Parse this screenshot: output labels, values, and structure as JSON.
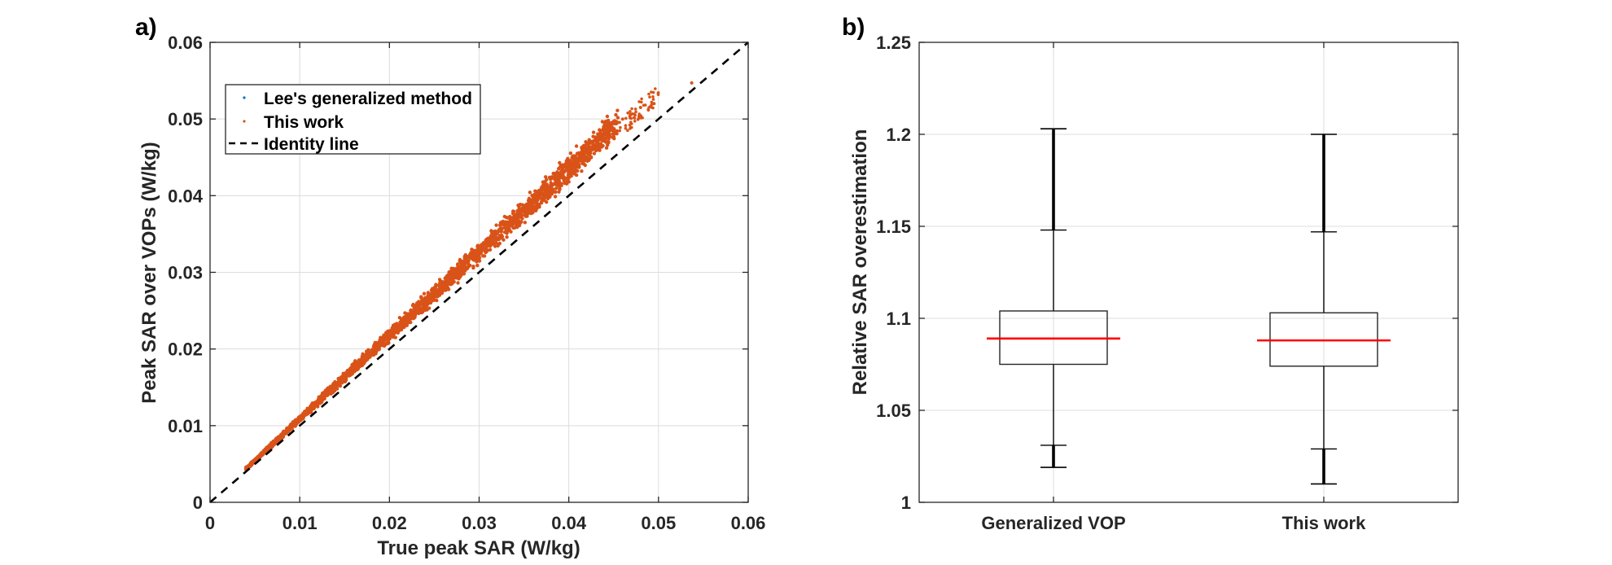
{
  "chart_data": [
    {
      "type": "scatter",
      "panel_label": "a)",
      "title": "",
      "xlabel": "True peak SAR (W/kg)",
      "ylabel": "Peak SAR over VOPs (W/kg)",
      "xlim": [
        0,
        0.06
      ],
      "ylim": [
        0,
        0.06
      ],
      "xticks": [
        0,
        0.01,
        0.02,
        0.03,
        0.04,
        0.05,
        0.06
      ],
      "yticks": [
        0,
        0.01,
        0.02,
        0.03,
        0.04,
        0.05,
        0.06
      ],
      "xtick_labels": [
        "0",
        "0.01",
        "0.02",
        "0.03",
        "0.04",
        "0.05",
        "0.06"
      ],
      "ytick_labels": [
        "0",
        "0.01",
        "0.02",
        "0.03",
        "0.04",
        "0.05",
        "0.06"
      ],
      "grid": true,
      "legend_position": "top-left",
      "legend": [
        {
          "label": "Lee's generalized method",
          "marker": "dot",
          "color": "#0072BD"
        },
        {
          "label": "This work",
          "marker": "dot",
          "color": "#D95319"
        },
        {
          "label": "Identity line",
          "marker": "dashed-line",
          "color": "#000000"
        }
      ],
      "series": [
        {
          "name": "Lee's generalized method",
          "color": "#0072BD",
          "note": "hidden beneath 'This work' points",
          "ratio_range_y_over_x": [
            1.02,
            1.2
          ],
          "x_range": [
            0.004,
            0.0537
          ],
          "points": []
        },
        {
          "name": "This work",
          "color": "#D95319",
          "ratio_range_y_over_x": [
            1.01,
            1.2
          ],
          "ratio_median": 1.088,
          "x_range": [
            0.004,
            0.0537
          ],
          "points": [
            [
              0.004,
              0.0046
            ],
            [
              0.006,
              0.0067
            ],
            [
              0.008,
              0.0089
            ],
            [
              0.01,
              0.011
            ],
            [
              0.012,
              0.0132
            ],
            [
              0.015,
              0.0165
            ],
            [
              0.018,
              0.0198
            ],
            [
              0.02,
              0.022
            ],
            [
              0.022,
              0.0242
            ],
            [
              0.025,
              0.0275
            ],
            [
              0.028,
              0.0308
            ],
            [
              0.03,
              0.033
            ],
            [
              0.033,
              0.0362
            ],
            [
              0.035,
              0.0385
            ],
            [
              0.038,
              0.0417
            ],
            [
              0.04,
              0.044
            ],
            [
              0.042,
              0.046
            ],
            [
              0.044,
              0.048
            ],
            [
              0.046,
              0.05
            ],
            [
              0.048,
              0.0515
            ],
            [
              0.0495,
              0.052
            ],
            [
              0.0537,
              0.0547
            ]
          ]
        },
        {
          "name": "Identity line",
          "color": "#000000",
          "style": "dashed",
          "x": [
            0,
            0.06
          ],
          "y": [
            0,
            0.06
          ]
        }
      ]
    },
    {
      "type": "box",
      "panel_label": "b)",
      "title": "",
      "xlabel": "",
      "ylabel": "Relative SAR overestimation",
      "ylim": [
        1,
        1.25
      ],
      "yticks": [
        1,
        1.05,
        1.1,
        1.15,
        1.2,
        1.25
      ],
      "ytick_labels": [
        "1",
        "1.05",
        "1.1",
        "1.15",
        "1.2",
        "1.25"
      ],
      "categories": [
        "Generalized VOP",
        "This work"
      ],
      "grid": true,
      "median_color": "#FF0000",
      "boxes": [
        {
          "name": "Generalized VOP",
          "median": 1.089,
          "q1": 1.075,
          "q3": 1.104,
          "whisker_low": 1.031,
          "whisker_high": 1.148,
          "min": 1.019,
          "max": 1.203
        },
        {
          "name": "This work",
          "median": 1.088,
          "q1": 1.074,
          "q3": 1.103,
          "whisker_low": 1.029,
          "whisker_high": 1.147,
          "min": 1.01,
          "max": 1.2
        }
      ]
    }
  ]
}
